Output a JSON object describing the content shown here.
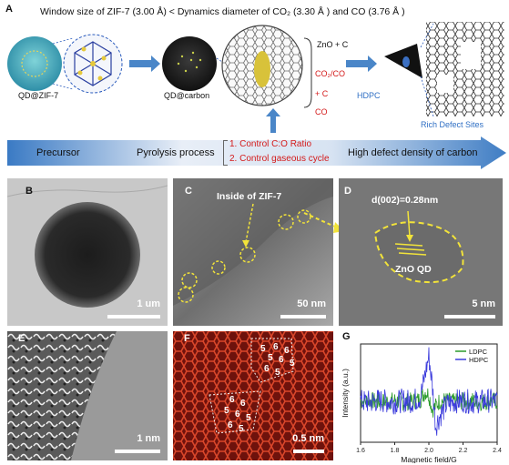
{
  "panel_a": {
    "letter": "A",
    "heading": "Window size of ZIF-7 (3.00 Å) < Dynamics diameter of CO₂ (3.30 Å ) and CO (3.76 Å )",
    "labels": {
      "qd_zif7": "QD@ZIF-7",
      "qd_carbon": "QD@carbon",
      "hdpc": "HDPC",
      "rich_defect": "Rich Defect Sites"
    },
    "reactions": {
      "zno_c": "ZnO + C",
      "co2_co": "CO₂/CO",
      "plus_c": "+ C",
      "co": "CO"
    },
    "band": {
      "precursor": "Precursor",
      "pyrolysis": "Pyrolysis process",
      "control1": "1. Control C:O Ratio",
      "control2": "2. Control gaseous cycle",
      "high_defect": "High defect density of carbon"
    }
  },
  "panel_b": {
    "letter": "B",
    "scale": "1 um"
  },
  "panel_c": {
    "letter": "C",
    "annotation": "Inside of ZIF-7",
    "scale": "50 nm"
  },
  "panel_d": {
    "letter": "D",
    "dspacing": "d(002)=0.28nm",
    "qd_label": "ZnO QD",
    "scale": "5 nm"
  },
  "panel_e": {
    "letter": "E",
    "scale": "1 nm"
  },
  "panel_f": {
    "letter": "F",
    "scale": "0.5 nm",
    "ring_labels": [
      "5",
      "6",
      "6",
      "5",
      "6",
      "5",
      "6",
      "5",
      "6",
      "6",
      "5",
      "6",
      "5",
      "6",
      "5"
    ]
  },
  "panel_g": {
    "letter": "G",
    "colors": {
      "ldpc": "#2a9a2a",
      "hdpc": "#3b3bdc"
    }
  },
  "chart_data": {
    "type": "line",
    "xlabel": "Magnetic field/G",
    "ylabel": "Intensity (a.u.)",
    "xlim": [
      1.6,
      2.4
    ],
    "xticks": [
      "1.6",
      "1.8",
      "2.0",
      "2.2",
      "2.4"
    ],
    "series": [
      {
        "name": "LDPC",
        "x": [
          1.6,
          1.65,
          1.7,
          1.75,
          1.8,
          1.85,
          1.9,
          1.95,
          1.98,
          2.0,
          2.02,
          2.04,
          2.06,
          2.1,
          2.15,
          2.2,
          2.25,
          2.3,
          2.35,
          2.4
        ],
        "values": [
          0.0,
          0.01,
          -0.01,
          0.0,
          0.01,
          -0.01,
          0.0,
          0.02,
          0.12,
          0.08,
          -0.1,
          -0.06,
          0.0,
          0.01,
          -0.01,
          0.0,
          0.01,
          -0.01,
          0.0,
          0.0
        ]
      },
      {
        "name": "HDPC",
        "x": [
          1.6,
          1.65,
          1.7,
          1.75,
          1.8,
          1.85,
          1.9,
          1.95,
          1.98,
          2.0,
          2.02,
          2.04,
          2.06,
          2.1,
          2.15,
          2.2,
          2.25,
          2.3,
          2.35,
          2.4
        ],
        "values": [
          0.0,
          -0.01,
          0.01,
          0.0,
          -0.01,
          0.01,
          0.0,
          0.05,
          0.35,
          0.55,
          0.2,
          -0.3,
          -0.2,
          -0.05,
          0.0,
          0.01,
          -0.01,
          0.0,
          0.01,
          0.0
        ]
      }
    ]
  }
}
